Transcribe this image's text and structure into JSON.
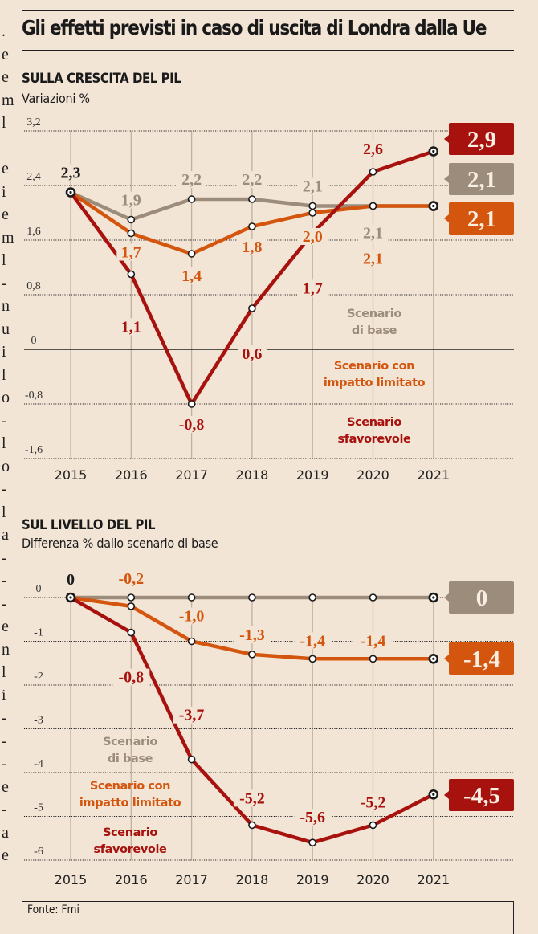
{
  "header": {
    "title": "Gli effetti previsti in caso di uscita di Londra dalla Ue"
  },
  "colors": {
    "background": "#F3E5D5",
    "base": "#9C8C7C",
    "limited": "#D4560E",
    "adverse": "#A8120E",
    "text": "#1a1a1a"
  },
  "sections": [
    {
      "title": "SULLA CRESCITA DEL PIL",
      "subtitle": "Variazioni %"
    },
    {
      "title": "SUL LIVELLO DEL PIL",
      "subtitle": "Differenza % dallo scenario di base"
    }
  ],
  "source": "Fonte: Fmi",
  "edge_text": ".eeml eieml-nuilo-lo-la---enli---e-ae",
  "chart_data": [
    {
      "type": "line",
      "title": "SULLA CRESCITA DEL PIL",
      "subtitle": "Variazioni %",
      "xlabel": "",
      "ylabel": "",
      "x": [
        "2015",
        "2016",
        "2017",
        "2018",
        "2019",
        "2020",
        "2021"
      ],
      "yticks": [
        "3,2",
        "2,4",
        "1,6",
        "0,8",
        "0",
        "-0,8",
        "-1,6"
      ],
      "ytick_values": [
        3.2,
        2.4,
        1.6,
        0.8,
        0,
        -0.8,
        -1.6
      ],
      "ylim": [
        -1.6,
        3.2
      ],
      "grid": true,
      "series": [
        {
          "name": "Scenario di base",
          "key": "base",
          "values": [
            2.3,
            1.9,
            2.2,
            2.2,
            2.1,
            2.1,
            2.1
          ],
          "labels": [
            "2,3",
            "1,9",
            "2,2",
            "2,2",
            "2,1",
            "2,1",
            null
          ],
          "end_label": "2,1"
        },
        {
          "name": "Scenario con impatto limitato",
          "key": "limited",
          "values": [
            2.3,
            1.7,
            1.4,
            1.8,
            2.0,
            2.1,
            2.1
          ],
          "labels": [
            null,
            "1,7",
            "1,4",
            "1,8",
            "2,0",
            "2,1",
            null
          ],
          "end_label": "2,1"
        },
        {
          "name": "Scenario sfavorevole",
          "key": "adverse",
          "values": [
            2.3,
            1.1,
            -0.8,
            0.6,
            1.7,
            2.6,
            2.9
          ],
          "labels": [
            null,
            "1,1",
            "-0,8",
            "0,6",
            "1,7",
            "2,6",
            null
          ],
          "end_label": "2,9"
        }
      ],
      "legend": [
        "Scenario di base",
        "Scenario con impatto limitato",
        "Scenario sfavorevole"
      ],
      "legend_lines": [
        [
          "Scenario",
          "di base"
        ],
        [
          "Scenario con",
          "impatto limitato"
        ],
        [
          "Scenario",
          "sfavorevole"
        ]
      ],
      "legend_position": "bottom-right"
    },
    {
      "type": "line",
      "title": "SUL LIVELLO DEL PIL",
      "subtitle": "Differenza % dallo scenario di base",
      "xlabel": "",
      "ylabel": "",
      "x": [
        "2015",
        "2016",
        "2017",
        "2018",
        "2019",
        "2020",
        "2021"
      ],
      "yticks": [
        "0",
        "-1",
        "-2",
        "-3",
        "-4",
        "-5",
        "-6"
      ],
      "ytick_values": [
        0,
        -1,
        -2,
        -3,
        -4,
        -5,
        -6
      ],
      "ylim": [
        -6,
        0
      ],
      "grid": true,
      "series": [
        {
          "name": "Scenario di base",
          "key": "base",
          "values": [
            0,
            0,
            0,
            0,
            0,
            0,
            0
          ],
          "labels": [
            "0",
            null,
            null,
            null,
            null,
            null,
            null
          ],
          "end_label": "0"
        },
        {
          "name": "Scenario con impatto limitato",
          "key": "limited",
          "values": [
            0,
            -0.2,
            -1.0,
            -1.3,
            -1.4,
            -1.4,
            -1.4
          ],
          "labels": [
            null,
            "-0,2",
            "-1,0",
            "-1,3",
            "-1,4",
            "-1,4",
            null
          ],
          "end_label": "-1,4"
        },
        {
          "name": "Scenario sfavorevole",
          "key": "adverse",
          "values": [
            0,
            -0.8,
            -3.7,
            -5.2,
            -5.6,
            -5.2,
            -4.5
          ],
          "labels": [
            null,
            "-0,8",
            "-3,7",
            "-5,2",
            "-5,6",
            "-5,2",
            null
          ],
          "end_label": "-4,5"
        }
      ],
      "legend": [
        "Scenario di base",
        "Scenario con impatto limitato",
        "Scenario sfavorevole"
      ],
      "legend_lines": [
        [
          "Scenario",
          "di base"
        ],
        [
          "Scenario con",
          "impatto limitato"
        ],
        [
          "Scenario",
          "sfavorevole"
        ]
      ],
      "legend_position": "bottom-left"
    }
  ]
}
